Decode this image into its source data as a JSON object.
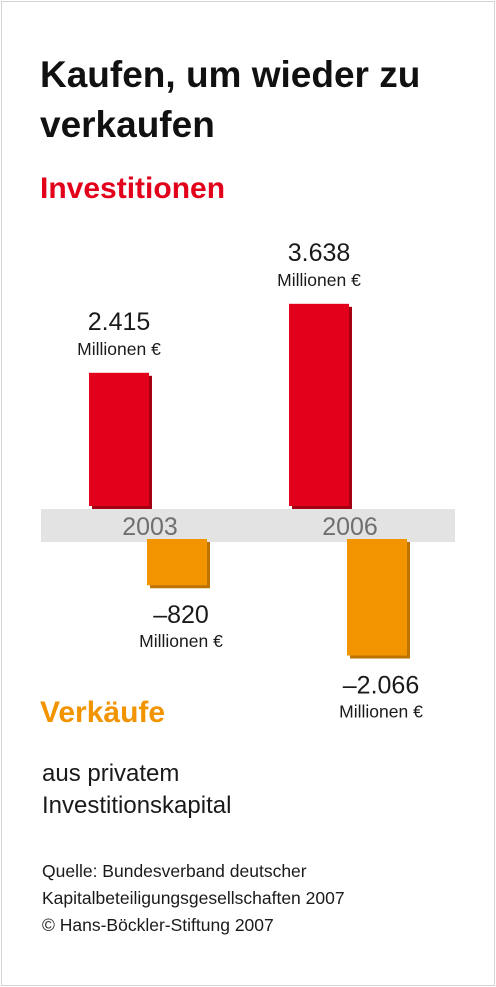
{
  "title": "Kaufen, um wieder zu verkaufen",
  "legend": {
    "positive": "Investitionen",
    "negative": "Verkäufe"
  },
  "subtitle": "aus privatem Investitionskapital",
  "source": {
    "line1": "Quelle: Bundesverband deutscher",
    "line2": "Kapitalbeteiligungsgesellschaften 2007",
    "copyright": "© Hans-Böckler-Stiftung 2007"
  },
  "colors": {
    "investitionen": "#e2001a",
    "verkaeufe": "#f29400",
    "axis_band": "#e3e3e3"
  },
  "chart_data": {
    "type": "bar",
    "categories": [
      "2003",
      "2006"
    ],
    "series": [
      {
        "name": "Investitionen",
        "values": [
          2415,
          3638
        ],
        "labels": [
          "2.415",
          "3.638"
        ],
        "unit": "Millionen €",
        "color": "#e2001a"
      },
      {
        "name": "Verkäufe",
        "values": [
          -820,
          -2066
        ],
        "labels": [
          "–820",
          "–2.066"
        ],
        "unit": "Millionen €",
        "color": "#f29400"
      }
    ]
  }
}
